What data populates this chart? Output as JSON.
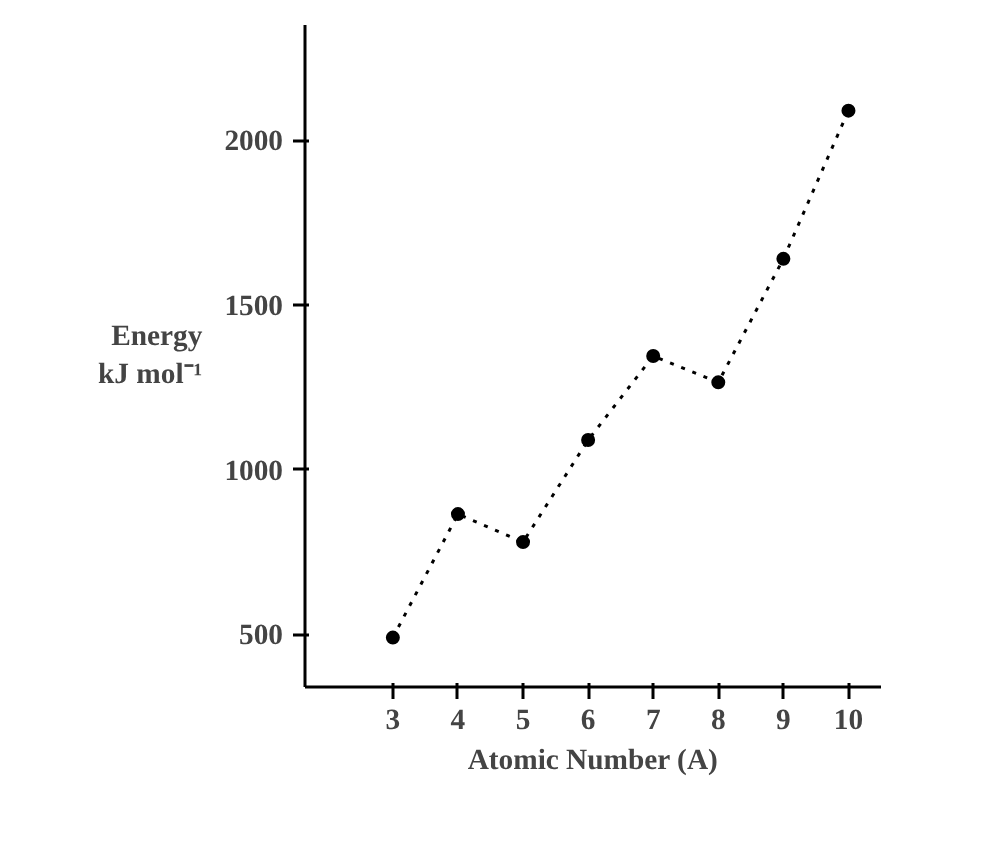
{
  "chart_data": {
    "type": "line",
    "xlabel": "Atomic Number (A)",
    "ylabel": "Energy\nkJ mol⁻¹",
    "x": [
      3,
      4,
      5,
      6,
      7,
      8,
      9,
      10
    ],
    "series": [
      {
        "color": "#000000",
        "values": [
          490,
          865,
          780,
          1090,
          1345,
          1265,
          1640,
          2090
        ]
      }
    ],
    "xlim": [
      1.65,
      10.5
    ],
    "ylim": [
      340,
      2350
    ],
    "xticks": [
      3,
      4,
      5,
      6,
      7,
      8,
      9,
      10
    ],
    "yticks": [
      500,
      1000,
      1500,
      2000
    ],
    "grid": false,
    "marker": "circle",
    "line_style": "dotted"
  }
}
